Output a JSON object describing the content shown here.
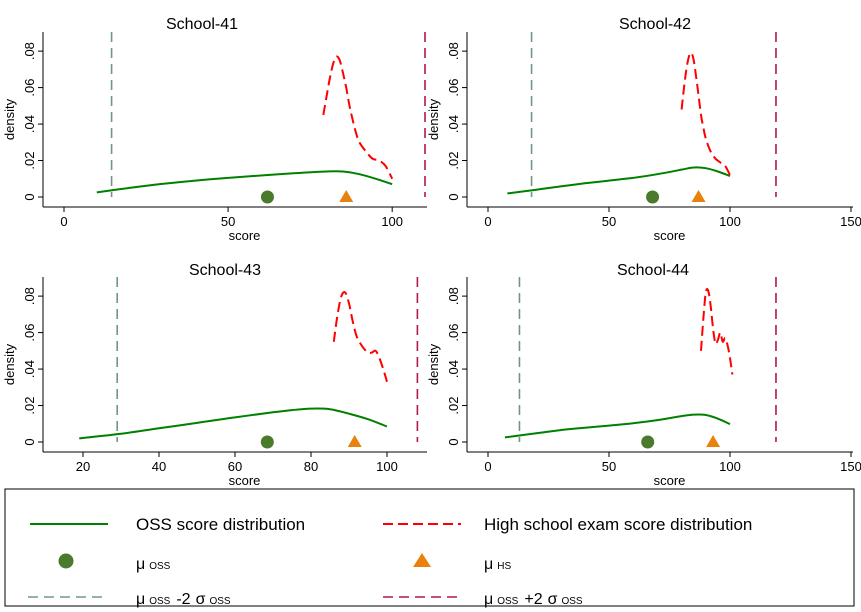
{
  "chart_data": [
    {
      "type": "line",
      "title": "School-41",
      "xlabel": "score",
      "ylabel": "density",
      "xlim": [
        0,
        110
      ],
      "ylim": [
        0,
        0.085
      ],
      "xticks": [
        0,
        50,
        100
      ],
      "xtick_labels": [
        "0",
        "50",
        "100"
      ],
      "yticks": [
        0,
        0.02,
        0.04,
        0.06,
        0.08
      ],
      "ytick_labels": [
        "0",
        ".02",
        ".04",
        ".06",
        ".08"
      ],
      "series": [
        {
          "name": "OSS score distribution",
          "color": "#008000",
          "style": "solid",
          "x": [
            10,
            20,
            30,
            40,
            50,
            60,
            70,
            80,
            85,
            90,
            95,
            100
          ],
          "y": [
            0.0025,
            0.005,
            0.0072,
            0.009,
            0.0105,
            0.0118,
            0.013,
            0.014,
            0.014,
            0.0125,
            0.01,
            0.007
          ]
        },
        {
          "name": "High school exam score distribution",
          "color": "#ff0000",
          "style": "dashed",
          "x": [
            79,
            80,
            81,
            82,
            83,
            84,
            85,
            86,
            87,
            88,
            89,
            90,
            92,
            94,
            96,
            98,
            100
          ],
          "y": [
            0.045,
            0.055,
            0.065,
            0.073,
            0.077,
            0.075,
            0.068,
            0.06,
            0.05,
            0.042,
            0.035,
            0.03,
            0.025,
            0.021,
            0.02,
            0.017,
            0.01
          ]
        }
      ],
      "mean_oss": 62,
      "mean_hs": 86,
      "mean_minus_2sd": 14.5,
      "mean_plus_2sd": 110
    },
    {
      "type": "line",
      "title": "School-42",
      "xlabel": "score",
      "ylabel": "density",
      "xlim": [
        0,
        150
      ],
      "ylim": [
        0,
        0.085
      ],
      "xticks": [
        0,
        50,
        100,
        150
      ],
      "xtick_labels": [
        "0",
        "50",
        "100",
        "150"
      ],
      "yticks": [
        0,
        0.02,
        0.04,
        0.06,
        0.08
      ],
      "ytick_labels": [
        "0",
        ".02",
        ".04",
        ".06",
        ".08"
      ],
      "series": [
        {
          "name": "OSS score distribution",
          "color": "#008000",
          "style": "solid",
          "x": [
            8,
            20,
            30,
            40,
            50,
            60,
            70,
            80,
            85,
            90,
            95,
            100
          ],
          "y": [
            0.002,
            0.004,
            0.0058,
            0.0075,
            0.009,
            0.0105,
            0.0125,
            0.015,
            0.0162,
            0.0158,
            0.014,
            0.0115
          ]
        },
        {
          "name": "High school exam score distribution",
          "color": "#ff0000",
          "style": "dashed",
          "x": [
            80,
            81,
            82,
            83,
            84,
            85,
            86,
            87,
            88,
            89,
            90,
            92,
            94,
            96,
            98,
            100
          ],
          "y": [
            0.048,
            0.06,
            0.07,
            0.077,
            0.079,
            0.075,
            0.066,
            0.056,
            0.045,
            0.038,
            0.032,
            0.025,
            0.021,
            0.019,
            0.017,
            0.012
          ]
        }
      ],
      "mean_oss": 68,
      "mean_hs": 87,
      "mean_minus_2sd": 18,
      "mean_plus_2sd": 119
    },
    {
      "type": "line",
      "title": "School-43",
      "xlabel": "score",
      "ylabel": "density",
      "xlim": [
        15,
        110
      ],
      "ylim": [
        0,
        0.085
      ],
      "xticks": [
        20,
        40,
        60,
        80,
        100
      ],
      "xtick_labels": [
        "20",
        "40",
        "60",
        "80",
        "100"
      ],
      "yticks": [
        0,
        0.02,
        0.04,
        0.06,
        0.08
      ],
      "ytick_labels": [
        "0",
        ".02",
        ".04",
        ".06",
        ".08"
      ],
      "series": [
        {
          "name": "OSS score distribution",
          "color": "#008000",
          "style": "solid",
          "x": [
            19,
            30,
            40,
            50,
            60,
            70,
            75,
            80,
            85,
            90,
            95,
            100
          ],
          "y": [
            0.002,
            0.0045,
            0.0075,
            0.0105,
            0.0135,
            0.0163,
            0.0175,
            0.0183,
            0.018,
            0.0155,
            0.0125,
            0.0085
          ]
        },
        {
          "name": "High school exam score distribution",
          "color": "#ff0000",
          "style": "dashed",
          "x": [
            86,
            87,
            88,
            89,
            90,
            91,
            92,
            93,
            94,
            95,
            96,
            97,
            98,
            99,
            100
          ],
          "y": [
            0.055,
            0.07,
            0.08,
            0.082,
            0.076,
            0.066,
            0.058,
            0.054,
            0.051,
            0.049,
            0.049,
            0.05,
            0.046,
            0.04,
            0.033
          ]
        }
      ],
      "mean_oss": 68.5,
      "mean_hs": 91.5,
      "mean_minus_2sd": 29,
      "mean_plus_2sd": 108
    },
    {
      "type": "line",
      "title": "School-44",
      "xlabel": "score",
      "ylabel": "density",
      "xlim": [
        0,
        150
      ],
      "ylim": [
        0,
        0.085
      ],
      "xticks": [
        0,
        50,
        100,
        150
      ],
      "xtick_labels": [
        "0",
        "50",
        "100",
        "150"
      ],
      "yticks": [
        0,
        0.02,
        0.04,
        0.06,
        0.08
      ],
      "ytick_labels": [
        "0",
        ".02",
        ".04",
        ".06",
        ".08"
      ],
      "series": [
        {
          "name": "OSS score distribution",
          "color": "#008000",
          "style": "solid",
          "x": [
            7,
            20,
            30,
            40,
            50,
            60,
            70,
            80,
            85,
            90,
            95,
            100
          ],
          "y": [
            0.0025,
            0.0048,
            0.0065,
            0.0078,
            0.009,
            0.0103,
            0.012,
            0.0142,
            0.015,
            0.0148,
            0.0128,
            0.0098
          ]
        },
        {
          "name": "High school exam score distribution",
          "color": "#ff0000",
          "style": "dashed",
          "x": [
            88,
            89,
            90,
            91,
            92,
            93,
            94,
            95,
            96,
            97,
            98,
            99,
            100,
            101
          ],
          "y": [
            0.05,
            0.068,
            0.082,
            0.083,
            0.075,
            0.062,
            0.054,
            0.056,
            0.06,
            0.055,
            0.057,
            0.053,
            0.046,
            0.037
          ]
        }
      ],
      "mean_oss": 66,
      "mean_hs": 93,
      "mean_minus_2sd": 13,
      "mean_plus_2sd": 119
    }
  ],
  "legend": {
    "entries": [
      {
        "key": "oss",
        "text": "OSS score distribution",
        "style": "green-solid"
      },
      {
        "key": "hs",
        "text": "High school exam score distribution",
        "style": "red-dashed"
      },
      {
        "key": "mu_oss",
        "mu": "μ",
        "sub": "OSS",
        "style": "green-circle"
      },
      {
        "key": "mu_hs",
        "mu": "μ",
        "sub": "HS",
        "style": "orange-triangle"
      },
      {
        "key": "minus",
        "mu": "μ",
        "sub": "OSS",
        "op": "-2",
        "sigma": "σ",
        "sigma_sub": "OSS",
        "style": "teal-dashed"
      },
      {
        "key": "plus",
        "mu": "μ",
        "sub": "OSS",
        "op": "+2",
        "sigma": "σ",
        "sigma_sub": "OSS",
        "style": "crimson-dashed"
      }
    ]
  },
  "colors": {
    "oss_line": "#008000",
    "hs_line": "#ff0000",
    "mean_oss_marker": "#4a7a2c",
    "mean_hs_marker": "#e8820c",
    "minus_2sd_line": "#6e9590",
    "plus_2sd_line": "#b01948"
  }
}
